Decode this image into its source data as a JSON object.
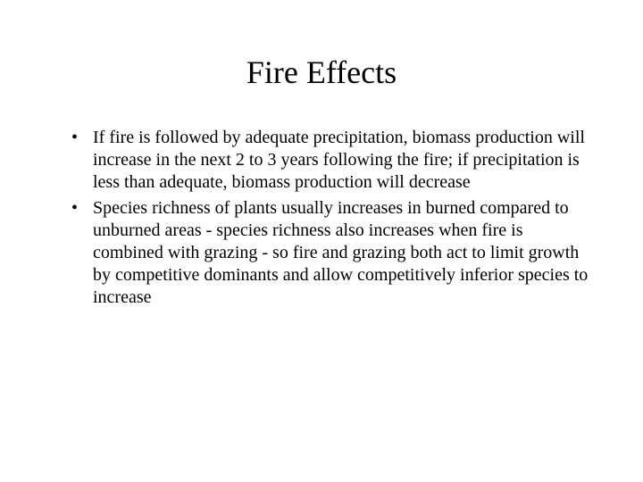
{
  "slide": {
    "title": "Fire Effects",
    "bullets": [
      {
        "text": "If fire is followed by adequate precipitation, biomass production will increase in the next 2 to 3 years following the fire; if precipitation is less than adequate, biomass production will decrease"
      },
      {
        "text": "Species richness of plants usually increases in burned compared to unburned areas - species richness also increases when fire is combined with grazing - so fire and grazing both act to limit growth by competitive dominants and allow competitively inferior species to increase"
      }
    ]
  },
  "styling": {
    "background_color": "#ffffff",
    "text_color": "#000000",
    "font_family": "Times New Roman",
    "title_fontsize": 36,
    "body_fontsize": 20
  }
}
